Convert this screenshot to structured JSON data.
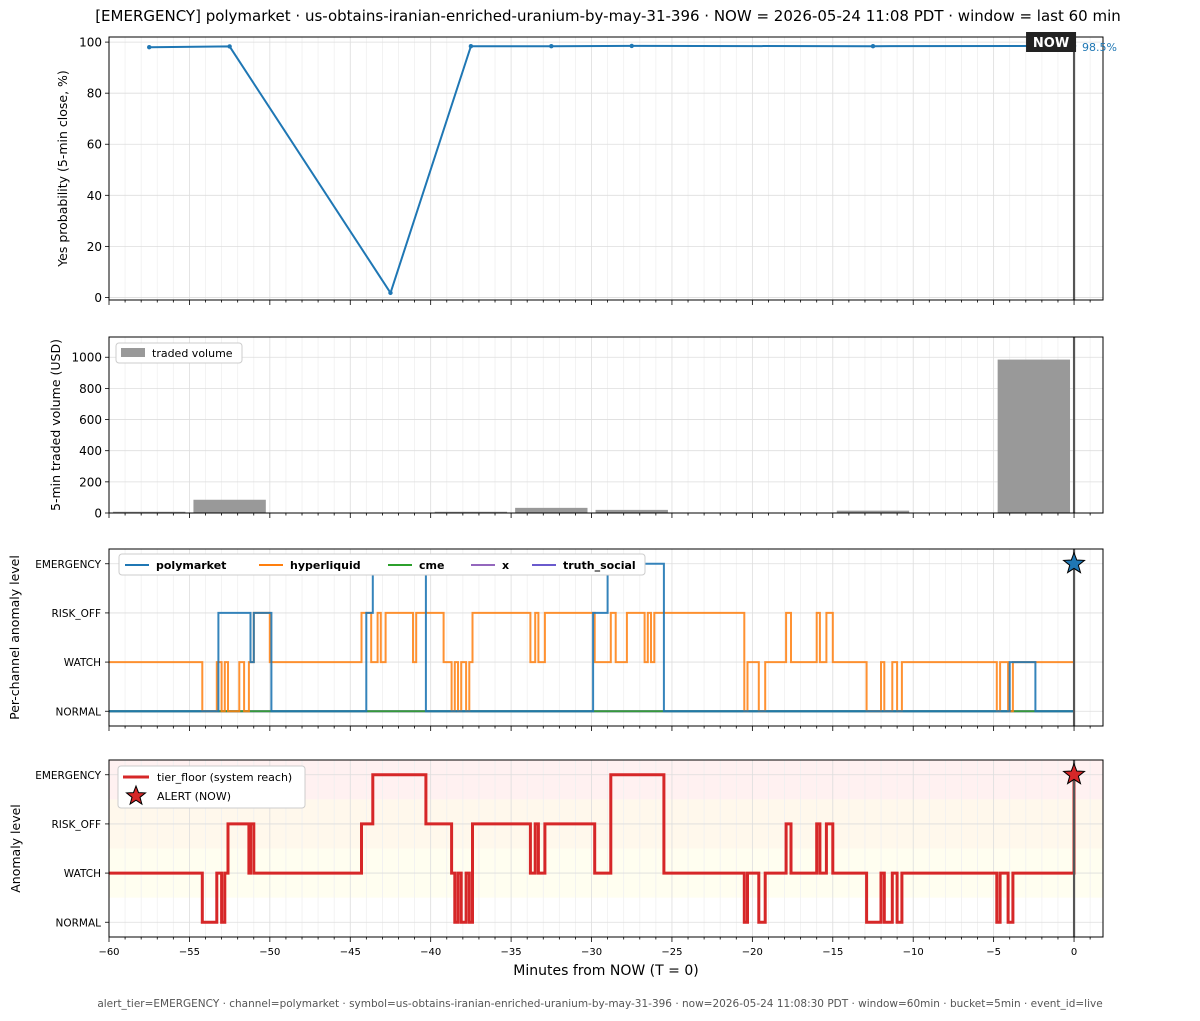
{
  "figure": {
    "title": "[EMERGENCY] polymarket · us-obtains-iranian-enriched-uranium-by-may-31-396  ·  NOW = 2026-05-24 11:08 PDT  ·  window = last 60 min",
    "footer": "alert_tier=EMERGENCY  ·  channel=polymarket  ·  symbol=us-obtains-iranian-enriched-uranium-by-may-31-396  ·  now=2026-05-24 11:08:30 PDT  ·  window=60min  ·  bucket=5min  ·  event_id=live",
    "now_label": "NOW",
    "colors": {
      "polymarket": "#1f77b4",
      "hyperliquid": "#ff7f0e",
      "cme": "#2ca02c",
      "x": "#9467bd",
      "truth_social": "#6a5acd",
      "tier_floor": "#d62728",
      "volume": "#999999",
      "now_line": "#555555"
    }
  },
  "chart_data": [
    {
      "type": "line",
      "name": "probability",
      "ylabel": "Yes probability (5-min close, %)",
      "xlim": [
        -60,
        1.8
      ],
      "ylim": [
        -1,
        102
      ],
      "yticks": [
        0,
        20,
        40,
        60,
        80,
        100
      ],
      "grid": true,
      "x": [
        -57.5,
        -52.5,
        -42.5,
        -37.5,
        -32.5,
        -27.5,
        -12.5,
        0
      ],
      "y": [
        98.0,
        98.3,
        1.8,
        98.4,
        98.4,
        98.5,
        98.4,
        98.5
      ],
      "last_value_label": "98.5%"
    },
    {
      "type": "bar",
      "name": "volume",
      "ylabel": "5-min traded volume (USD)",
      "xlim": [
        -60,
        1.8
      ],
      "ylim": [
        0,
        1130
      ],
      "yticks": [
        0,
        200,
        400,
        600,
        800,
        1000
      ],
      "grid": true,
      "legend": [
        "traded volume"
      ],
      "legend_position": "upper-left",
      "bar_width": 4.5,
      "x": [
        -57.5,
        -52.5,
        -47.5,
        -42.5,
        -37.5,
        -32.5,
        -27.5,
        -22.5,
        -17.5,
        -12.5,
        -7.5,
        -2.5
      ],
      "values": [
        8,
        85,
        0,
        0,
        8,
        33,
        20,
        0,
        0,
        15,
        0,
        985
      ]
    },
    {
      "type": "line",
      "name": "per-channel",
      "ylabel": "Per-channel anomaly level",
      "xlim": [
        -60,
        1.8
      ],
      "ylim": [
        -0.3,
        3.3
      ],
      "levels": [
        "NORMAL",
        "WATCH",
        "RISK_OFF",
        "EMERGENCY"
      ],
      "grid": true,
      "legend_position": "upper-left",
      "series": [
        {
          "name": "polymarket",
          "step": true,
          "x": [
            -60,
            -53.2,
            -51.2,
            -51.0,
            -49.9,
            -44.0,
            -43.6,
            -40.3,
            -29.9,
            -29.0,
            -25.5,
            -4.0,
            -2.4,
            0
          ],
          "y": [
            0,
            2,
            1,
            2,
            0,
            2,
            3,
            0,
            2,
            3,
            0,
            1,
            0,
            3
          ]
        },
        {
          "name": "hyperliquid",
          "step": true,
          "x": [
            -60,
            -54.2,
            -53.3,
            -53.0,
            -52.8,
            -52.6,
            -51.9,
            -51.6,
            -51.3,
            -51.0,
            -50.0,
            -44.3,
            -43.7,
            -43.3,
            -43.1,
            -42.8,
            -41.1,
            -40.9,
            -39.2,
            -38.7,
            -38.5,
            -38.3,
            -38.1,
            -37.8,
            -37.6,
            -37.4,
            -33.8,
            -33.5,
            -33.3,
            -32.9,
            -29.8,
            -28.8,
            -28.5,
            -27.8,
            -26.7,
            -26.5,
            -26.3,
            -26.1,
            -20.5,
            -20.3,
            -19.6,
            -19.2,
            -17.9,
            -17.6,
            -16.0,
            -15.8,
            -15.4,
            -15.0,
            -12.9,
            -12.0,
            -11.8,
            -11.3,
            -11.0,
            -10.7,
            -4.8,
            -4.6,
            -4.1,
            -3.8,
            -0.1,
            0
          ],
          "y": [
            1,
            0,
            1,
            0,
            1,
            0,
            1,
            0,
            1,
            2,
            1,
            2,
            1,
            2,
            1,
            2,
            1,
            2,
            1,
            0,
            1,
            0,
            1,
            0,
            1,
            2,
            1,
            2,
            1,
            2,
            1,
            2,
            1,
            2,
            1,
            2,
            1,
            2,
            0,
            1,
            0,
            1,
            2,
            1,
            2,
            1,
            2,
            1,
            0,
            1,
            0,
            1,
            0,
            1,
            0,
            1,
            0,
            1,
            1,
            1
          ]
        },
        {
          "name": "cme",
          "step": true,
          "x": [
            -60,
            0
          ],
          "y": [
            0,
            0
          ]
        },
        {
          "name": "x",
          "step": true,
          "x": [
            -60,
            0
          ],
          "y": [
            0,
            0
          ]
        },
        {
          "name": "truth_social",
          "step": true,
          "x": [
            -60,
            0
          ],
          "y": [
            0,
            0
          ]
        }
      ],
      "alert_marker": {
        "x": 0,
        "y": 3,
        "color": "#1f77b4"
      }
    },
    {
      "type": "line",
      "name": "tier_floor",
      "ylabel": "Anomaly level",
      "xlabel": "Minutes from NOW (T = 0)",
      "xlim": [
        -60,
        1.8
      ],
      "ylim": [
        -0.3,
        3.3
      ],
      "xticks": [
        -60,
        -55,
        -50,
        -45,
        -40,
        -35,
        -30,
        -25,
        -20,
        -15,
        -10,
        -5,
        0
      ],
      "levels": [
        "NORMAL",
        "WATCH",
        "RISK_OFF",
        "EMERGENCY"
      ],
      "grid": true,
      "legend_position": "upper-left",
      "bands": [
        {
          "from": 0.5,
          "to": 1.5,
          "color": "#fffde6"
        },
        {
          "from": 1.5,
          "to": 2.5,
          "color": "#fff3e0"
        },
        {
          "from": 2.5,
          "to": 3.3,
          "color": "#ffe8e8"
        }
      ],
      "series": [
        {
          "name": "tier_floor (system reach)",
          "step": true,
          "x": [
            -60,
            -54.2,
            -53.3,
            -53.0,
            -52.8,
            -52.6,
            -51.3,
            -51.2,
            -51.0,
            -49.9,
            -44.3,
            -43.6,
            -40.3,
            -39.5,
            -38.7,
            -38.5,
            -38.3,
            -38.1,
            -37.8,
            -37.6,
            -37.4,
            -33.8,
            -33.5,
            -33.3,
            -32.9,
            -29.8,
            -28.8,
            -25.5,
            -20.5,
            -20.3,
            -19.6,
            -19.2,
            -17.9,
            -17.6,
            -16.0,
            -15.8,
            -15.4,
            -15.0,
            -12.9,
            -12.0,
            -11.8,
            -11.3,
            -11.0,
            -10.7,
            -4.8,
            -4.6,
            -4.1,
            -3.8,
            -0.1,
            0
          ],
          "y": [
            1,
            0,
            1,
            0,
            1,
            2,
            1,
            2,
            1,
            1,
            2,
            3,
            2,
            2,
            1,
            0,
            1,
            0,
            1,
            0,
            2,
            1,
            2,
            1,
            2,
            1,
            3,
            1,
            0,
            1,
            0,
            1,
            2,
            1,
            2,
            1,
            2,
            1,
            0,
            1,
            0,
            1,
            0,
            1,
            0,
            1,
            0,
            1,
            1,
            3
          ]
        }
      ],
      "alert_marker": {
        "x": 0,
        "y": 3,
        "color": "#d62728",
        "legend": "ALERT (NOW)"
      }
    }
  ]
}
